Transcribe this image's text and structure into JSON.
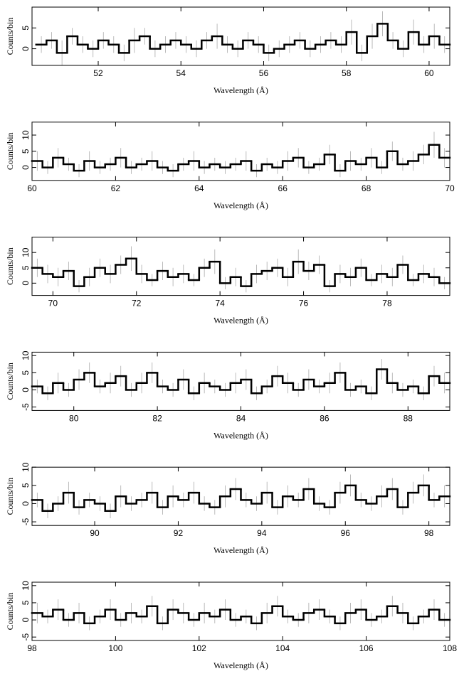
{
  "chart_data": [
    {
      "type": "histogram",
      "xlabel": "Wavelength (Å)",
      "ylabel": "Counts/bin",
      "bins": [
        50.5,
        50.75,
        51,
        51.25,
        51.5,
        51.75,
        52,
        52.25,
        52.5,
        52.75,
        53,
        53.25,
        53.5,
        53.75,
        54,
        54.25,
        54.5,
        54.75,
        55,
        55.25,
        55.5,
        55.75,
        56,
        56.25,
        56.5,
        56.75,
        57,
        57.25,
        57.5,
        57.75,
        58,
        58.25,
        58.5,
        58.75,
        59,
        59.25,
        59.5,
        59.75,
        60,
        60.25,
        60.5
      ],
      "values": [
        1,
        2,
        -1,
        3,
        1,
        0,
        2,
        1,
        -1,
        2,
        3,
        0,
        1,
        2,
        1,
        0,
        2,
        3,
        1,
        0,
        2,
        1,
        -1,
        0,
        1,
        2,
        0,
        1,
        2,
        1,
        4,
        -1,
        3,
        6,
        2,
        0,
        4,
        1,
        3,
        1
      ],
      "errors": [
        2,
        2,
        3,
        2,
        2,
        2,
        2,
        2,
        2,
        3,
        2,
        2,
        2,
        2,
        2,
        2,
        2,
        3,
        2,
        2,
        2,
        2,
        2,
        2,
        2,
        2,
        2,
        2,
        2,
        2,
        3,
        2,
        3,
        3,
        2,
        2,
        3,
        2,
        3,
        2
      ],
      "xlim": [
        50.4,
        60.5
      ],
      "ylim": [
        -4,
        10
      ],
      "xticks": [
        52,
        54,
        56,
        58,
        60
      ],
      "yticks": [
        0,
        5
      ]
    },
    {
      "type": "histogram",
      "xlabel": "Wavelength (Å)",
      "ylabel": "Counts/bin",
      "bins": [
        60,
        60.25,
        60.5,
        60.75,
        61,
        61.25,
        61.5,
        61.75,
        62,
        62.25,
        62.5,
        62.75,
        63,
        63.25,
        63.5,
        63.75,
        64,
        64.25,
        64.5,
        64.75,
        65,
        65.25,
        65.5,
        65.75,
        66,
        66.25,
        66.5,
        66.75,
        67,
        67.25,
        67.5,
        67.75,
        68,
        68.25,
        68.5,
        68.75,
        69,
        69.25,
        69.5,
        69.75,
        70
      ],
      "values": [
        2,
        0,
        3,
        1,
        -1,
        2,
        0,
        1,
        3,
        0,
        1,
        2,
        0,
        -1,
        1,
        2,
        0,
        1,
        0,
        1,
        2,
        -1,
        1,
        0,
        2,
        3,
        0,
        1,
        4,
        -1,
        2,
        1,
        3,
        0,
        5,
        1,
        2,
        4,
        7,
        3
      ],
      "errors": [
        3,
        2,
        3,
        2,
        2,
        3,
        2,
        2,
        3,
        2,
        2,
        3,
        2,
        2,
        2,
        3,
        2,
        2,
        2,
        2,
        3,
        2,
        2,
        2,
        3,
        3,
        2,
        2,
        3,
        2,
        3,
        2,
        3,
        2,
        3,
        2,
        3,
        3,
        4,
        3
      ],
      "xlim": [
        60,
        70
      ],
      "ylim": [
        -4,
        14
      ],
      "xticks": [
        60,
        62,
        64,
        66,
        68,
        70
      ],
      "yticks": [
        0,
        5,
        10
      ]
    },
    {
      "type": "histogram",
      "xlabel": "Wavelength (Å)",
      "ylabel": "Counts/bin",
      "bins": [
        69.5,
        69.75,
        70,
        70.25,
        70.5,
        70.75,
        71,
        71.25,
        71.5,
        71.75,
        72,
        72.25,
        72.5,
        72.75,
        73,
        73.25,
        73.5,
        73.75,
        74,
        74.25,
        74.5,
        74.75,
        75,
        75.25,
        75.5,
        75.75,
        76,
        76.25,
        76.5,
        76.75,
        77,
        77.25,
        77.5,
        77.75,
        78,
        78.25,
        78.5,
        78.75,
        79,
        79.25,
        79.5
      ],
      "values": [
        5,
        3,
        2,
        4,
        -1,
        2,
        5,
        3,
        6,
        8,
        3,
        1,
        4,
        2,
        3,
        1,
        5,
        7,
        0,
        2,
        -1,
        3,
        4,
        5,
        2,
        7,
        4,
        6,
        -1,
        3,
        2,
        5,
        1,
        3,
        2,
        6,
        1,
        3,
        2,
        0
      ],
      "errors": [
        3,
        3,
        3,
        3,
        2,
        3,
        3,
        3,
        3,
        4,
        3,
        2,
        3,
        3,
        3,
        2,
        3,
        4,
        2,
        3,
        2,
        3,
        3,
        3,
        3,
        4,
        3,
        3,
        2,
        3,
        3,
        3,
        2,
        3,
        3,
        3,
        2,
        3,
        3,
        2
      ],
      "xlim": [
        69.5,
        79.5
      ],
      "ylim": [
        -4,
        15
      ],
      "xticks": [
        70,
        72,
        74,
        76,
        78
      ],
      "yticks": [
        0,
        5,
        10
      ]
    },
    {
      "type": "histogram",
      "xlabel": "Wavelength (Å)",
      "ylabel": "Counts/bin",
      "bins": [
        79,
        79.25,
        79.5,
        79.75,
        80,
        80.25,
        80.5,
        80.75,
        81,
        81.25,
        81.5,
        81.75,
        82,
        82.25,
        82.5,
        82.75,
        83,
        83.25,
        83.5,
        83.75,
        84,
        84.25,
        84.5,
        84.75,
        85,
        85.25,
        85.5,
        85.75,
        86,
        86.25,
        86.5,
        86.75,
        87,
        87.25,
        87.5,
        87.75,
        88,
        88.25,
        88.5,
        88.75,
        89
      ],
      "values": [
        1,
        -1,
        2,
        0,
        3,
        5,
        1,
        2,
        4,
        0,
        2,
        5,
        1,
        0,
        3,
        -1,
        2,
        1,
        0,
        2,
        3,
        -1,
        1,
        4,
        2,
        0,
        3,
        1,
        2,
        5,
        0,
        1,
        -1,
        6,
        2,
        0,
        1,
        -1,
        4,
        2
      ],
      "errors": [
        2,
        2,
        3,
        2,
        3,
        3,
        2,
        3,
        3,
        2,
        3,
        3,
        2,
        2,
        3,
        2,
        3,
        2,
        2,
        3,
        3,
        2,
        2,
        3,
        3,
        2,
        3,
        2,
        3,
        3,
        2,
        2,
        2,
        3,
        3,
        2,
        2,
        2,
        3,
        3
      ],
      "xlim": [
        79,
        89
      ],
      "ylim": [
        -6,
        11
      ],
      "xticks": [
        80,
        82,
        84,
        86,
        88
      ],
      "yticks": [
        -5,
        0,
        5,
        10
      ]
    },
    {
      "type": "histogram",
      "xlabel": "Wavelength (Å)",
      "ylabel": "Counts/bin",
      "bins": [
        88.5,
        88.75,
        89,
        89.25,
        89.5,
        89.75,
        90,
        90.25,
        90.5,
        90.75,
        91,
        91.25,
        91.5,
        91.75,
        92,
        92.25,
        92.5,
        92.75,
        93,
        93.25,
        93.5,
        93.75,
        94,
        94.25,
        94.5,
        94.75,
        95,
        95.25,
        95.5,
        95.75,
        96,
        96.25,
        96.5,
        96.75,
        97,
        97.25,
        97.5,
        97.75,
        98,
        98.25,
        98.5
      ],
      "values": [
        1,
        -2,
        0,
        3,
        -1,
        1,
        0,
        -2,
        2,
        0,
        1,
        3,
        -1,
        2,
        1,
        3,
        0,
        -1,
        2,
        4,
        1,
        0,
        3,
        -1,
        2,
        1,
        4,
        0,
        -1,
        3,
        5,
        1,
        0,
        2,
        4,
        -1,
        3,
        5,
        1,
        2
      ],
      "errors": [
        2,
        2,
        2,
        3,
        2,
        2,
        2,
        2,
        3,
        2,
        2,
        3,
        2,
        3,
        2,
        3,
        2,
        2,
        3,
        3,
        2,
        2,
        3,
        2,
        3,
        2,
        3,
        2,
        2,
        3,
        3,
        2,
        2,
        3,
        3,
        2,
        3,
        3,
        2,
        3
      ],
      "xlim": [
        88.5,
        98.5
      ],
      "ylim": [
        -6,
        10
      ],
      "xticks": [
        90,
        92,
        94,
        96,
        98
      ],
      "yticks": [
        -5,
        0,
        5,
        10
      ]
    },
    {
      "type": "histogram",
      "xlabel": "Wavelength (Å)",
      "ylabel": "Counts/bin",
      "bins": [
        98,
        98.25,
        98.5,
        98.75,
        99,
        99.25,
        99.5,
        99.75,
        100,
        100.25,
        100.5,
        100.75,
        101,
        101.25,
        101.5,
        101.75,
        102,
        102.25,
        102.5,
        102.75,
        103,
        103.25,
        103.5,
        103.75,
        104,
        104.25,
        104.5,
        104.75,
        105,
        105.25,
        105.5,
        105.75,
        106,
        106.25,
        106.5,
        106.75,
        107,
        107.25,
        107.5,
        107.75,
        108
      ],
      "values": [
        2,
        1,
        3,
        0,
        2,
        -1,
        1,
        3,
        0,
        2,
        1,
        4,
        -1,
        3,
        2,
        0,
        2,
        1,
        3,
        0,
        1,
        -1,
        2,
        4,
        1,
        0,
        2,
        3,
        1,
        -1,
        2,
        3,
        0,
        1,
        4,
        2,
        -1,
        1,
        3,
        0
      ],
      "errors": [
        3,
        2,
        3,
        2,
        3,
        2,
        2,
        3,
        2,
        3,
        2,
        3,
        2,
        3,
        3,
        2,
        3,
        2,
        3,
        2,
        2,
        2,
        3,
        3,
        2,
        2,
        3,
        3,
        2,
        2,
        3,
        3,
        2,
        2,
        3,
        3,
        2,
        2,
        3,
        2
      ],
      "xlim": [
        98,
        108
      ],
      "ylim": [
        -6,
        11
      ],
      "xticks": [
        98,
        100,
        102,
        104,
        106,
        108
      ],
      "yticks": [
        -5,
        0,
        5,
        10
      ]
    }
  ]
}
